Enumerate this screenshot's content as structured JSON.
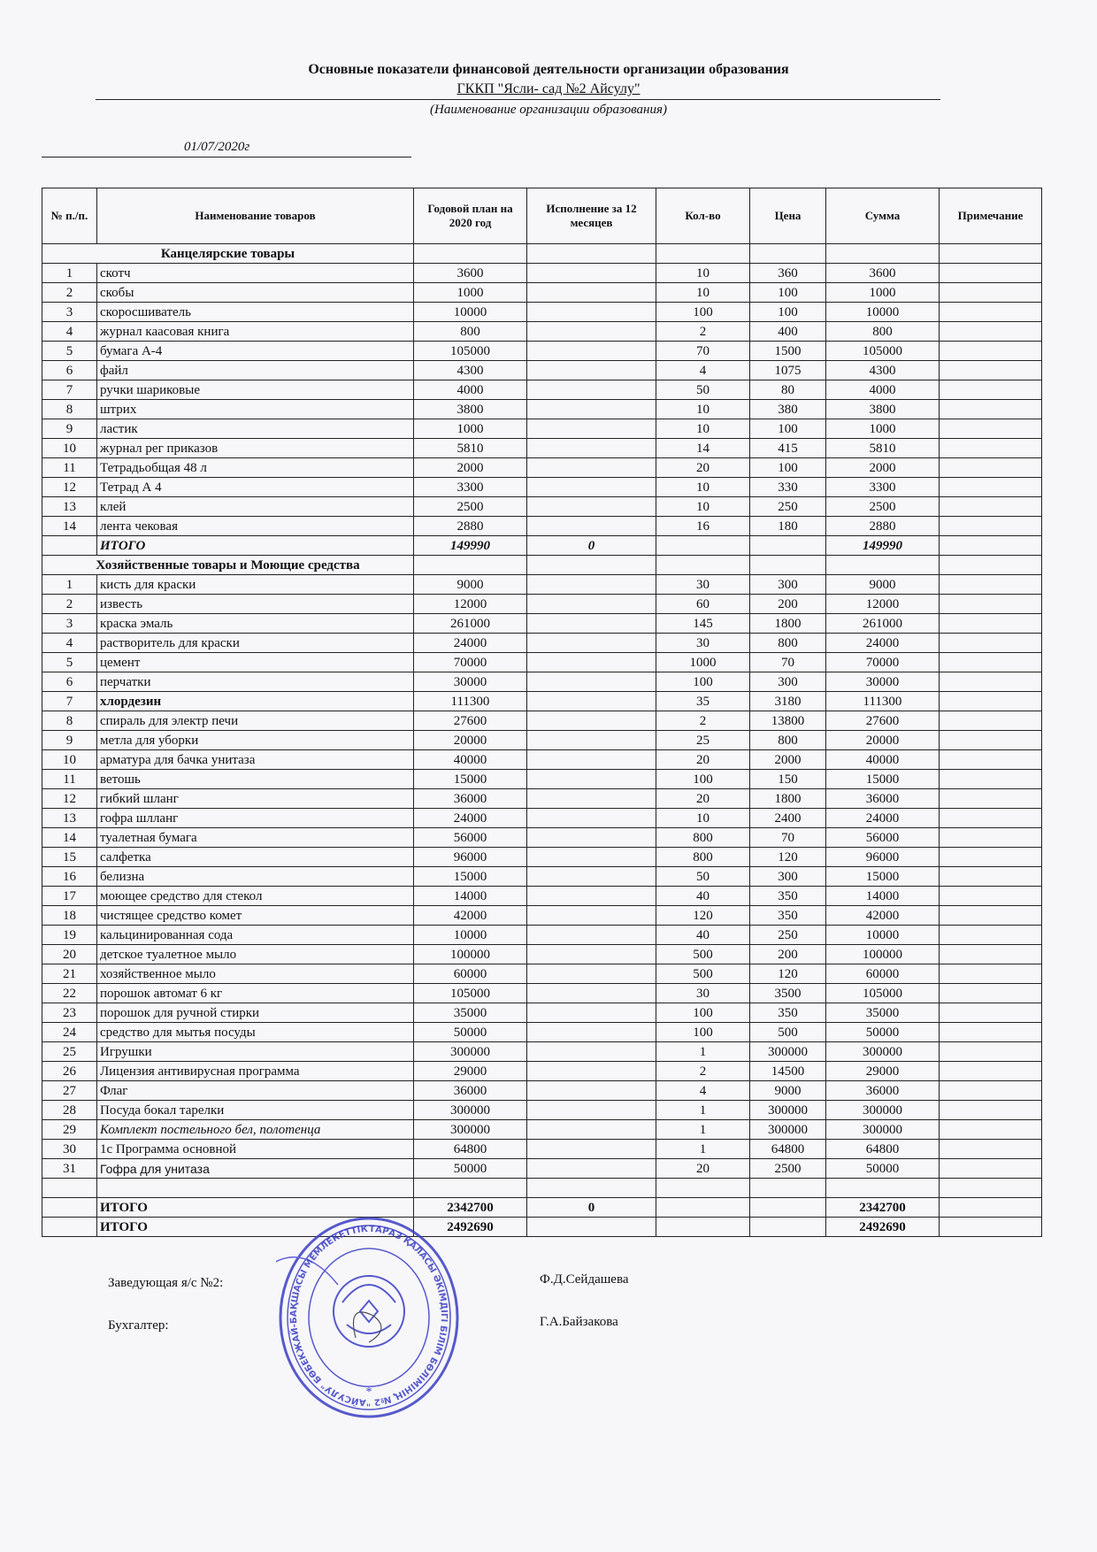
{
  "header": {
    "title": "Основные показатели  финансовой деятельности организации образования",
    "organization": "ГККП \"Ясли- сад №2 Айсулу\"",
    "organization_caption": "(Наименование организации образования)",
    "date": "01/07/2020г"
  },
  "table": {
    "columns": [
      "№ п./п.",
      "Наименование товаров",
      "Годовой план на 2020 год",
      "Исполнение за 12 месяцев",
      "Кол-во",
      "Цена",
      "Сумма",
      "Примечание"
    ],
    "sections": [
      {
        "title": "Канцелярские товары",
        "rows": [
          [
            "1",
            "скотч",
            "3600",
            "",
            "10",
            "360",
            "3600",
            ""
          ],
          [
            "2",
            "скобы",
            "1000",
            "",
            "10",
            "100",
            "1000",
            ""
          ],
          [
            "3",
            "скоросшиватель",
            "10000",
            "",
            "100",
            "100",
            "10000",
            ""
          ],
          [
            "4",
            "журнал каасовая книга",
            "800",
            "",
            "2",
            "400",
            "800",
            ""
          ],
          [
            "5",
            "бумага А-4",
            "105000",
            "",
            "70",
            "1500",
            "105000",
            ""
          ],
          [
            "6",
            "файл",
            "4300",
            "",
            "4",
            "1075",
            "4300",
            ""
          ],
          [
            "7",
            "ручки шариковые",
            "4000",
            "",
            "50",
            "80",
            "4000",
            ""
          ],
          [
            "8",
            "штрих",
            "3800",
            "",
            "10",
            "380",
            "3800",
            ""
          ],
          [
            "9",
            "ластик",
            "1000",
            "",
            "10",
            "100",
            "1000",
            ""
          ],
          [
            "10",
            "журнал рег приказов",
            "5810",
            "",
            "14",
            "415",
            "5810",
            ""
          ],
          [
            "11",
            "Тетрадьобщая 48 л",
            "2000",
            "",
            "20",
            "100",
            "2000",
            ""
          ],
          [
            "12",
            "Тетрад А 4",
            "3300",
            "",
            "10",
            "330",
            "3300",
            ""
          ],
          [
            "13",
            "клей",
            "2500",
            "",
            "10",
            "250",
            "2500",
            ""
          ],
          [
            "14",
            "лента чековая",
            "2880",
            "",
            "16",
            "180",
            "2880",
            ""
          ]
        ],
        "total": [
          "",
          "ИТОГО",
          "149990",
          "0",
          "",
          "",
          "149990",
          ""
        ]
      },
      {
        "title": "Хозяйственные товары и Моющие средства",
        "rows": [
          [
            "1",
            "кисть для краски",
            "9000",
            "",
            "30",
            "300",
            "9000",
            ""
          ],
          [
            "2",
            "известь",
            "12000",
            "",
            "60",
            "200",
            "12000",
            ""
          ],
          [
            "3",
            "краска эмаль",
            "261000",
            "",
            "145",
            "1800",
            "261000",
            ""
          ],
          [
            "4",
            "растворитель для краски",
            "24000",
            "",
            "30",
            "800",
            "24000",
            ""
          ],
          [
            "5",
            "цемент",
            "70000",
            "",
            "1000",
            "70",
            "70000",
            ""
          ],
          [
            "6",
            "перчатки",
            "30000",
            "",
            "100",
            "300",
            "30000",
            ""
          ],
          [
            "7",
            "хлордезин",
            "111300",
            "",
            "35",
            "3180",
            "111300",
            "",
            "bold"
          ],
          [
            "8",
            "спираль для электр печи",
            "27600",
            "",
            "2",
            "13800",
            "27600",
            ""
          ],
          [
            "9",
            "метла для уборки",
            "20000",
            "",
            "25",
            "800",
            "20000",
            ""
          ],
          [
            "10",
            "арматура для бачка унитаза",
            "40000",
            "",
            "20",
            "2000",
            "40000",
            ""
          ],
          [
            "11",
            "ветошь",
            "15000",
            "",
            "100",
            "150",
            "15000",
            ""
          ],
          [
            "12",
            "гибкий шланг",
            "36000",
            "",
            "20",
            "1800",
            "36000",
            ""
          ],
          [
            "13",
            "гофра шлланг",
            "24000",
            "",
            "10",
            "2400",
            "24000",
            ""
          ],
          [
            "14",
            "туалетная бумага",
            "56000",
            "",
            "800",
            "70",
            "56000",
            ""
          ],
          [
            "15",
            "салфетка",
            "96000",
            "",
            "800",
            "120",
            "96000",
            ""
          ],
          [
            "16",
            "белизна",
            "15000",
            "",
            "50",
            "300",
            "15000",
            ""
          ],
          [
            "17",
            "моющее средство для стекол",
            "14000",
            "",
            "40",
            "350",
            "14000",
            ""
          ],
          [
            "18",
            "чистящее средство комет",
            "42000",
            "",
            "120",
            "350",
            "42000",
            ""
          ],
          [
            "19",
            "кальцинированная сода",
            "10000",
            "",
            "40",
            "250",
            "10000",
            ""
          ],
          [
            "20",
            "детское туалетное мыло",
            "100000",
            "",
            "500",
            "200",
            "100000",
            ""
          ],
          [
            "21",
            "хозяйственное мыло",
            "60000",
            "",
            "500",
            "120",
            "60000",
            ""
          ],
          [
            "22",
            "порошок автомат 6 кг",
            "105000",
            "",
            "30",
            "3500",
            "105000",
            ""
          ],
          [
            "23",
            "порошок для ручной стирки",
            "35000",
            "",
            "100",
            "350",
            "35000",
            ""
          ],
          [
            "24",
            "средство для мытья посуды",
            "50000",
            "",
            "100",
            "500",
            "50000",
            ""
          ],
          [
            "25",
            "Игрушки",
            "300000",
            "",
            "1",
            "300000",
            "300000",
            ""
          ],
          [
            "26",
            "Лицензия антивирусная программа",
            "29000",
            "",
            "2",
            "14500",
            "29000",
            ""
          ],
          [
            "27",
            "Флаг",
            "36000",
            "",
            "4",
            "9000",
            "36000",
            ""
          ],
          [
            "28",
            "Посуда бокал тарелки",
            "300000",
            "",
            "1",
            "300000",
            "300000",
            ""
          ],
          [
            "29",
            "Комплект постельного бел, полотенца",
            "300000",
            "",
            "1",
            "300000",
            "300000",
            "",
            "italic"
          ],
          [
            "30",
            "1с Программа основной",
            "64800",
            "",
            "1",
            "64800",
            "64800",
            ""
          ],
          [
            "31",
            "Гофра для унитаза",
            "50000",
            "",
            "20",
            "2500",
            "50000",
            "",
            "sans"
          ]
        ],
        "total": [
          "",
          "ИТОГО",
          "2342700",
          "0",
          "",
          "",
          "2342700",
          ""
        ]
      }
    ],
    "grand_total": [
      "",
      "ИТОГО",
      "2492690",
      "",
      "",
      "",
      "2492690",
      ""
    ]
  },
  "signatures": {
    "head_label": "Заведующая я/с №2:",
    "head_name": "Ф.Д.Сейдашева",
    "accountant_label": "Бухгалтер:",
    "accountant_name": "Г.А.Байзакова"
  },
  "stamp": {
    "text": "ТАРАЗ ҚАЛАСЫ ӘКІМДІГІ БІЛІМ БӨЛІМІНІҢ №2 \"АЙСУЛУ\" БӨБЕКЖАЙ-БАҚШАСЫ МЕМЛЕКЕТТІК КОММУНАЛДЫҚ ҚАЗЫНАЛЫҚ КӘСІПОРНЫ",
    "color": "#3a3fc4"
  }
}
